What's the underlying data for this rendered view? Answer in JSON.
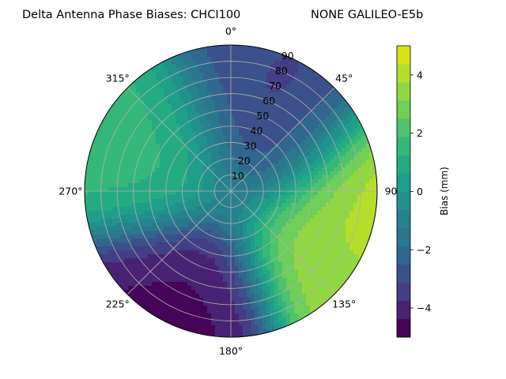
{
  "chart_data": {
    "type": "heatmap",
    "projection": "polar",
    "title": "Delta Antenna Phase Biases: CHCI100",
    "subtitle": "NONE GALILEO-E5b",
    "theta_direction": "clockwise",
    "theta_zero": "N",
    "theta_tick_labels": [
      "0°",
      "45°",
      "90",
      "135°",
      "180°",
      "225°",
      "270°",
      "315°"
    ],
    "radial_tick_labels": [
      "10",
      "20",
      "30",
      "40",
      "50",
      "60",
      "70",
      "80",
      "90"
    ],
    "rlim": [
      0,
      90
    ],
    "grid": true,
    "colorbar": {
      "label": "Bias (mm)",
      "ticks": [
        "−4",
        "−2",
        "0",
        "2",
        "4"
      ],
      "range": [
        -5,
        5
      ],
      "levels": [
        -5,
        -4.375,
        -3.75,
        -3.125,
        -2.5,
        -1.875,
        -1.25,
        -0.625,
        0,
        0.625,
        1.25,
        1.875,
        2.5,
        3.125,
        3.75,
        4.375,
        5
      ],
      "colors": [
        "#450457",
        "#482374",
        "#433e85",
        "#3b518b",
        "#31678e",
        "#2a788e",
        "#26828e",
        "#21918c",
        "#1f9e89",
        "#25ab82",
        "#35b779",
        "#4ec36b",
        "#6ece58",
        "#90d743",
        "#b5de2b",
        "#d8e219",
        "#e4e419"
      ]
    },
    "features": [
      {
        "kind": "high",
        "azimuth_deg": 300,
        "zenith_deg": 60,
        "value": 1.5
      },
      {
        "kind": "low",
        "azimuth_deg": 35,
        "zenith_deg": 55,
        "value": -3.5
      },
      {
        "kind": "low",
        "azimuth_deg": 205,
        "zenith_deg": 80,
        "value": -4.5
      },
      {
        "kind": "high",
        "azimuth_deg": 90,
        "zenith_deg": 88,
        "value": 4.5
      },
      {
        "kind": "high",
        "azimuth_deg": 120,
        "zenith_deg": 80,
        "value": 3.5
      },
      {
        "kind": "low",
        "azimuth_deg": 15,
        "zenith_deg": 88,
        "value": -3.0
      }
    ]
  }
}
